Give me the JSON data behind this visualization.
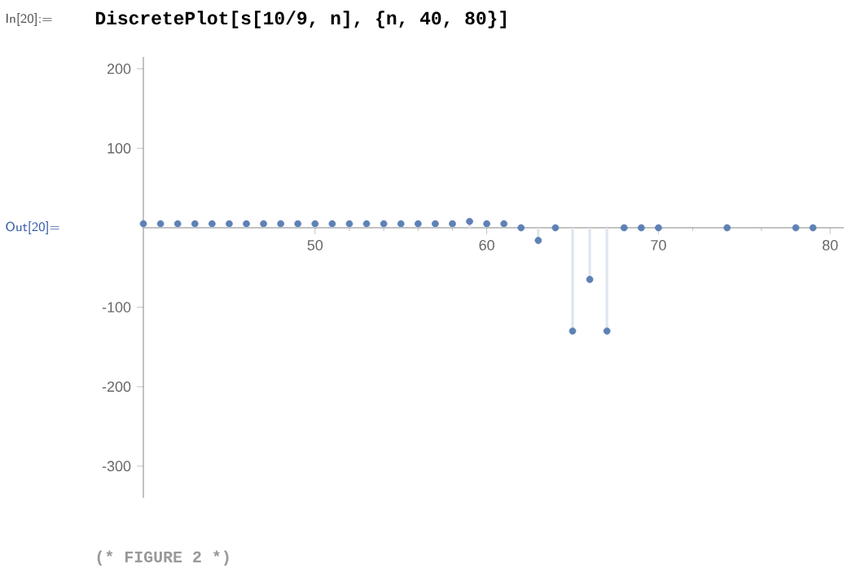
{
  "chart_data": {
    "type": "lollipop",
    "marker": "circle",
    "color": "#5e81b5",
    "x": [
      40,
      41,
      42,
      43,
      44,
      45,
      46,
      47,
      48,
      49,
      50,
      51,
      52,
      53,
      54,
      55,
      56,
      57,
      58,
      59,
      60,
      61,
      62,
      63,
      64,
      65,
      66,
      67,
      68,
      69,
      70,
      71,
      72,
      73,
      74,
      75,
      76,
      77,
      78,
      79
    ],
    "values": [
      5,
      5,
      5,
      5,
      5,
      5,
      5,
      5,
      5,
      5,
      5,
      5,
      5,
      5,
      5,
      5,
      5,
      5,
      5,
      8,
      5,
      5,
      0,
      -16,
      0,
      -130,
      -65,
      -130,
      0,
      0,
      0,
      null,
      null,
      null,
      0,
      null,
      null,
      null,
      0,
      0
    ],
    "xlim": [
      40,
      80.8
    ],
    "ylim": [
      -340,
      215
    ],
    "xticks": [
      50,
      60,
      70,
      80
    ],
    "yticks": [
      -300,
      -200,
      -100,
      100,
      200
    ],
    "annotations": [
      "In[20]:=",
      "DiscretePlot[s[10/9, n], {n, 40, 80}]",
      "Out[20]=",
      "(* FIGURE 2 *)"
    ]
  }
}
